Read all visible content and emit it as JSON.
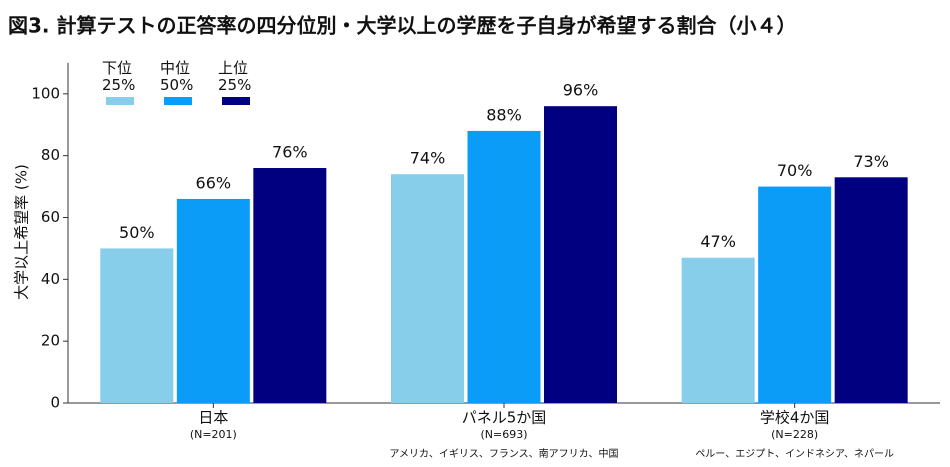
{
  "chart_data": {
    "type": "bar",
    "title": "図3. 計算テストの正答率の四分位別・大学以上の学歴を子自身が希望する割合（小４）",
    "y_label": "大学以上希望率 (%)",
    "categories": [
      "日本",
      "パネル5か国",
      "学校4か国"
    ],
    "category_n": [
      "(N=201)",
      "(N=693)",
      "(N=228)"
    ],
    "category_countries": [
      null,
      "アメリカ、イギリス、フランス、南アフリカ、中国",
      "ペルー、エジプト、インドネシア、ネパール"
    ],
    "series": [
      {
        "name": "下位\n25%",
        "color": "#87ceeb",
        "values": [
          50,
          74,
          47
        ],
        "value_labels": [
          "50%",
          "74%",
          "47%"
        ]
      },
      {
        "name": "中位\n50%",
        "color": "#0a9cf7",
        "values": [
          66,
          88,
          70
        ],
        "value_labels": [
          "66%",
          "88%",
          "70%"
        ]
      },
      {
        "name": "上位\n25%",
        "color": "#000080",
        "values": [
          76,
          96,
          73
        ],
        "value_labels": [
          "76%",
          "96%",
          "73%"
        ]
      }
    ],
    "ylim": [
      0,
      110
    ],
    "yticks": [
      0,
      20,
      40,
      60,
      80,
      100
    ],
    "legend": "upper left"
  }
}
